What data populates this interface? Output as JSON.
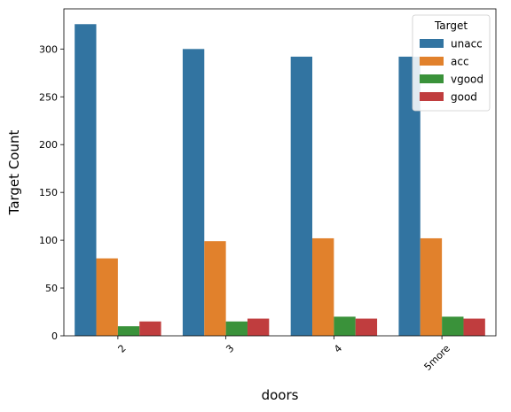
{
  "chart_data": {
    "type": "bar",
    "xlabel": "doors",
    "ylabel": "Target Count",
    "categories": [
      "2",
      "3",
      "4",
      "5more"
    ],
    "series": [
      {
        "name": "unacc",
        "color": "#3274a1",
        "values": [
          326,
          300,
          292,
          292
        ]
      },
      {
        "name": "acc",
        "color": "#e1812c",
        "values": [
          81,
          99,
          102,
          102
        ]
      },
      {
        "name": "vgood",
        "color": "#3a923a",
        "values": [
          10,
          15,
          20,
          20
        ]
      },
      {
        "name": "good",
        "color": "#c03d3e",
        "values": [
          15,
          18,
          18,
          18
        ]
      }
    ],
    "ylim": [
      0,
      342
    ],
    "yticks": [
      0,
      50,
      100,
      150,
      200,
      250,
      300
    ],
    "legend": {
      "title": "Target",
      "placement": "top-right"
    },
    "grid": false,
    "xtick_rotation": -45
  }
}
